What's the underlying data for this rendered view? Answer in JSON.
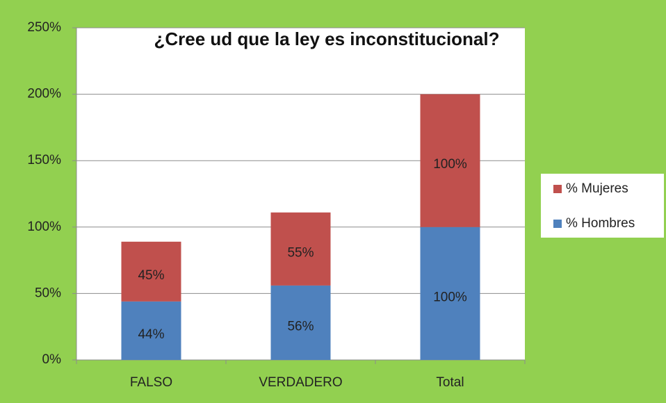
{
  "chart_data": {
    "type": "stacked_bar",
    "title": "¿Cree ud que la ley es inconstitucional?",
    "categories": [
      "FALSO",
      "VERDADERO",
      "Total"
    ],
    "series": [
      {
        "name": "% Hombres",
        "color": "#4f81bd",
        "values": [
          44,
          56,
          100
        ],
        "value_labels": [
          "44%",
          "56%",
          "100%"
        ]
      },
      {
        "name": "% Mujeres",
        "color": "#c0504d",
        "values": [
          45,
          55,
          100
        ],
        "value_labels": [
          "45%",
          "55%",
          "100%"
        ]
      }
    ],
    "ylim": [
      0,
      250
    ],
    "yticks": [
      {
        "value": 0,
        "label": "0%"
      },
      {
        "value": 50,
        "label": "50%"
      },
      {
        "value": 100,
        "label": "100%"
      },
      {
        "value": 150,
        "label": "150%"
      },
      {
        "value": 200,
        "label": "200%"
      },
      {
        "value": 250,
        "label": "250%"
      }
    ],
    "grid": true,
    "legend": "right"
  }
}
